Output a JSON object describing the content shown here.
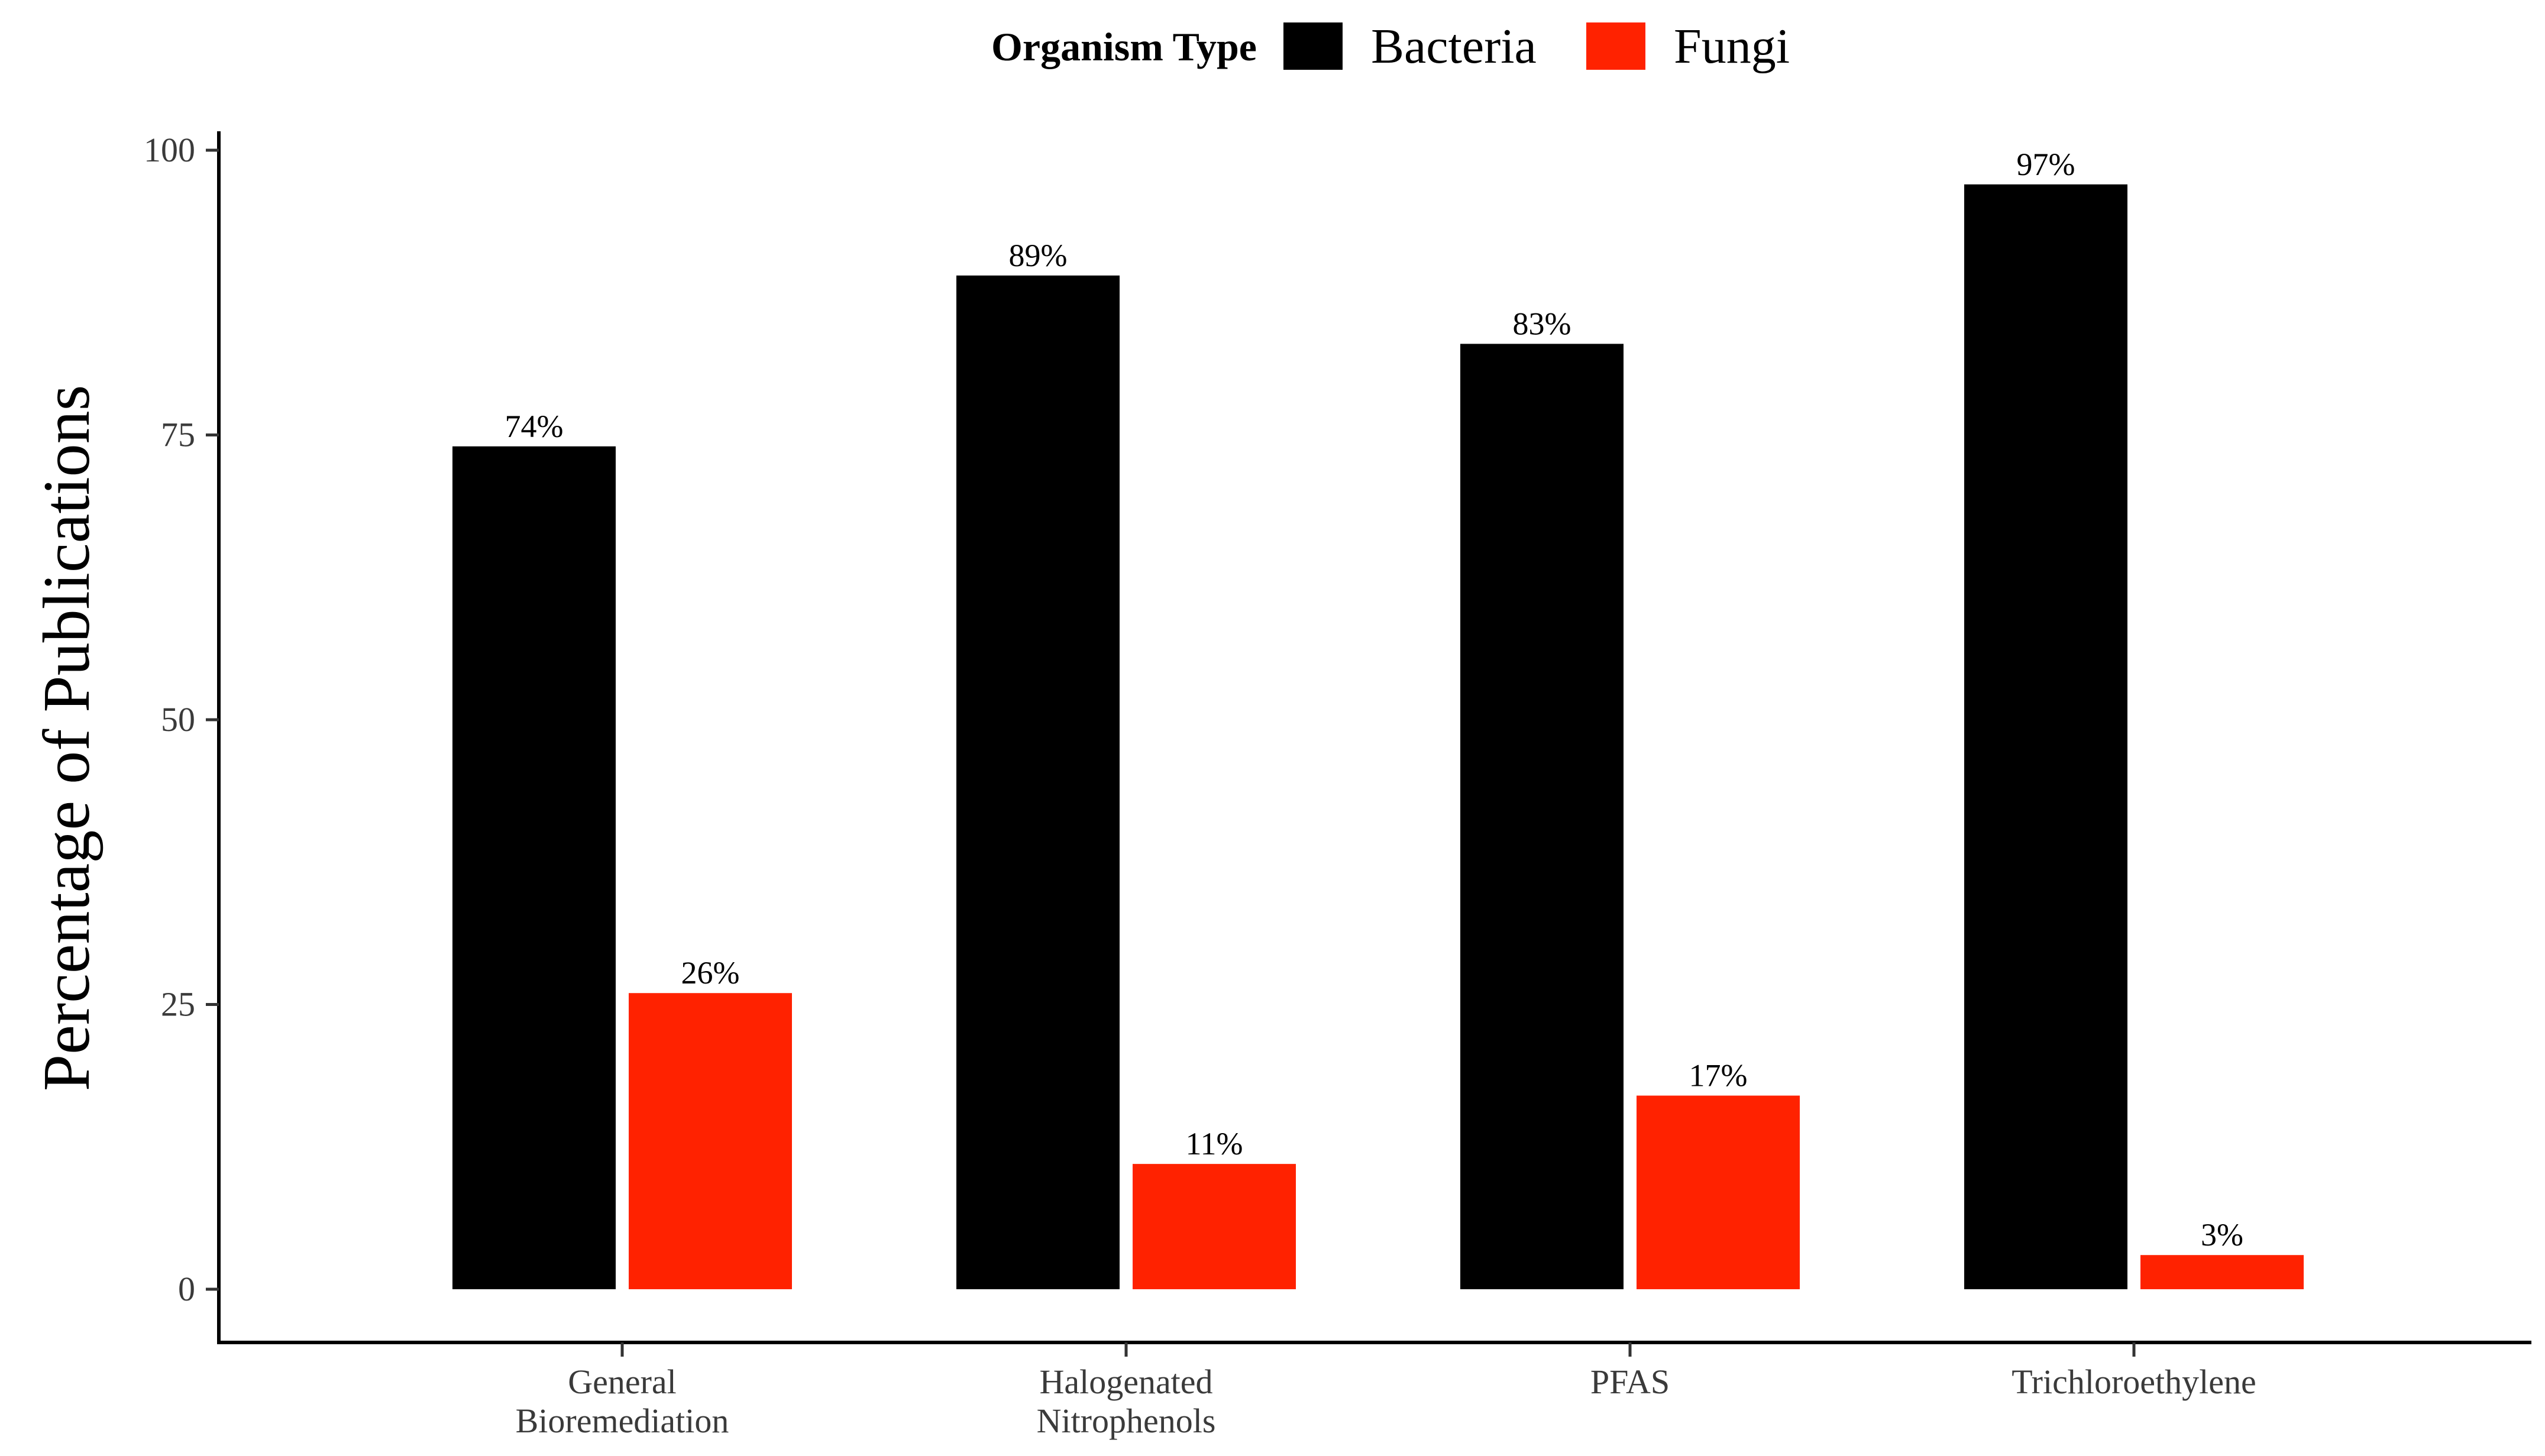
{
  "chart_data": {
    "type": "bar",
    "title": "",
    "xlabel": "",
    "ylabel": "Percentage of Publications",
    "ylim": [
      0,
      100
    ],
    "yticks": [
      0,
      25,
      50,
      75,
      100
    ],
    "grid": false,
    "legend": {
      "title": "Organism Type",
      "placement": "top-center"
    },
    "categories": [
      [
        "General",
        "Bioremediation"
      ],
      [
        "Halogenated",
        "Nitrophenols"
      ],
      [
        "PFAS"
      ],
      [
        "Trichloroethylene"
      ]
    ],
    "series": [
      {
        "name": "Bacteria",
        "color": "#000000",
        "values": [
          74,
          89,
          83,
          97
        ],
        "labels": [
          "74%",
          "89%",
          "83%",
          "97%"
        ]
      },
      {
        "name": "Fungi",
        "color": "#ff2200",
        "values": [
          26,
          11,
          17,
          3
        ],
        "labels": [
          "26%",
          "11%",
          "17%",
          "3%"
        ]
      }
    ]
  }
}
